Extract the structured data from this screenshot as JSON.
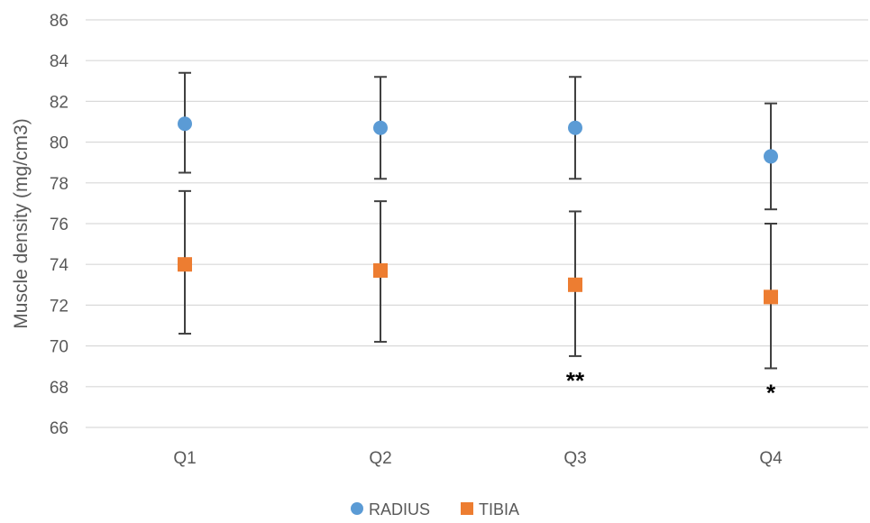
{
  "chart_data": {
    "type": "scatter",
    "title": "",
    "xlabel": "",
    "ylabel": "Muscle density (mg/cm3)",
    "categories": [
      "Q1",
      "Q2",
      "Q3",
      "Q4"
    ],
    "ylim": [
      66,
      86
    ],
    "yticks": [
      66,
      68,
      70,
      72,
      74,
      76,
      78,
      80,
      82,
      84,
      86
    ],
    "grid": true,
    "legend_position": "bottom",
    "series": [
      {
        "name": "RADIUS",
        "marker": "circle",
        "color": "#5b9bd5",
        "values": [
          80.9,
          80.7,
          80.7,
          79.3
        ],
        "error_low": [
          78.5,
          78.2,
          78.2,
          76.7
        ],
        "error_high": [
          83.4,
          83.2,
          83.2,
          81.9
        ]
      },
      {
        "name": "TIBIA",
        "marker": "square",
        "color": "#ed7d31",
        "values": [
          74.0,
          73.7,
          73.0,
          72.4
        ],
        "error_low": [
          70.6,
          70.2,
          69.5,
          68.9
        ],
        "error_high": [
          77.6,
          77.1,
          76.6,
          76.0
        ]
      }
    ],
    "annotations": [
      {
        "category": "Q3",
        "text": "**"
      },
      {
        "category": "Q4",
        "text": "*"
      }
    ]
  }
}
